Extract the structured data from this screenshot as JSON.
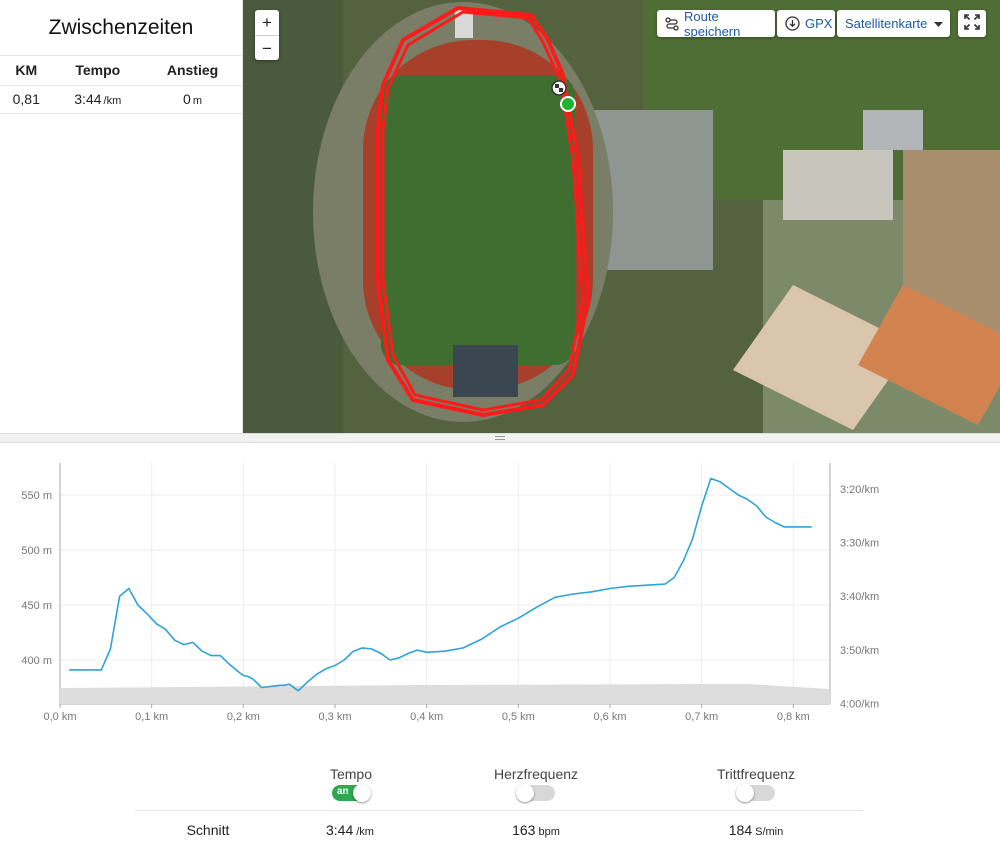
{
  "splits": {
    "title": "Zwischenzeiten",
    "columns": [
      "KM",
      "Tempo",
      "Anstieg"
    ],
    "rows": [
      {
        "km": "0,81",
        "pace": "3:44",
        "pace_unit": "/km",
        "ascent": "0",
        "ascent_unit": "m"
      }
    ]
  },
  "map": {
    "zoom_in": "+",
    "zoom_out": "−",
    "save_route": "Route speichern",
    "gpx": "GPX",
    "map_type": "Satellitenkarte",
    "icons": [
      "route-icon",
      "download-icon",
      "caret-down-icon",
      "fullscreen-icon",
      "checkered-flag-icon",
      "start-marker-icon"
    ],
    "route_color": "#ff1a1a"
  },
  "chart_data": {
    "type": "line",
    "x_unit": "km",
    "xlim": [
      0,
      0.84
    ],
    "x_ticks": [
      "0,0 km",
      "0,1 km",
      "0,2 km",
      "0,3 km",
      "0,4 km",
      "0,5 km",
      "0,6 km",
      "0,7 km",
      "0,8 km"
    ],
    "y_left": {
      "ticks": [
        "550 m",
        "500 m",
        "450 m",
        "400 m"
      ],
      "tick_values": [
        550,
        500,
        450,
        400
      ]
    },
    "y_right": {
      "ticks": [
        "3:20/km",
        "3:30/km",
        "3:40/km",
        "3:50/km",
        "4:00/km"
      ]
    },
    "series": [
      {
        "color": "#2fa3d8",
        "axis": "left",
        "x": [
          0.01,
          0.045,
          0.055,
          0.06,
          0.065,
          0.075,
          0.085,
          0.095,
          0.105,
          0.115,
          0.125,
          0.135,
          0.145,
          0.155,
          0.165,
          0.175,
          0.185,
          0.195,
          0.2,
          0.205,
          0.21,
          0.22,
          0.23,
          0.24,
          0.245,
          0.25,
          0.26,
          0.27,
          0.28,
          0.29,
          0.3,
          0.31,
          0.32,
          0.33,
          0.34,
          0.35,
          0.36,
          0.37,
          0.38,
          0.39,
          0.4,
          0.42,
          0.44,
          0.46,
          0.48,
          0.5,
          0.52,
          0.54,
          0.56,
          0.58,
          0.6,
          0.62,
          0.64,
          0.66,
          0.67,
          0.68,
          0.69,
          0.7,
          0.71,
          0.72,
          0.73,
          0.74,
          0.75,
          0.76,
          0.77,
          0.78,
          0.79,
          0.8,
          0.82
        ],
        "y": [
          391,
          391,
          410,
          434,
          458,
          465,
          450,
          442,
          433,
          428,
          418,
          414,
          416,
          408,
          404,
          404,
          396,
          389,
          386,
          385,
          383,
          375,
          376,
          377,
          377,
          378,
          372,
          380,
          387,
          392,
          395,
          400,
          408,
          411,
          410,
          406,
          400,
          402,
          406,
          409,
          407,
          408,
          411,
          419,
          430,
          438,
          448,
          457,
          460,
          462,
          465,
          467,
          468,
          469,
          475,
          490,
          510,
          540,
          565,
          562,
          556,
          550,
          546,
          540,
          530,
          525,
          521,
          521,
          521
        ]
      }
    ],
    "lower_band_color": "#dddddd"
  },
  "metrics": {
    "items": [
      {
        "label": "Tempo",
        "toggle": "an",
        "on": true
      },
      {
        "label": "Herzfrequenz",
        "on": false
      },
      {
        "label": "Trittfrequenz",
        "on": false
      }
    ],
    "avg_label": "Schnitt",
    "avg": [
      {
        "value": "3:44",
        "unit": "/km"
      },
      {
        "value": "163",
        "unit": "bpm"
      },
      {
        "value": "184",
        "unit": "S/min"
      }
    ]
  }
}
